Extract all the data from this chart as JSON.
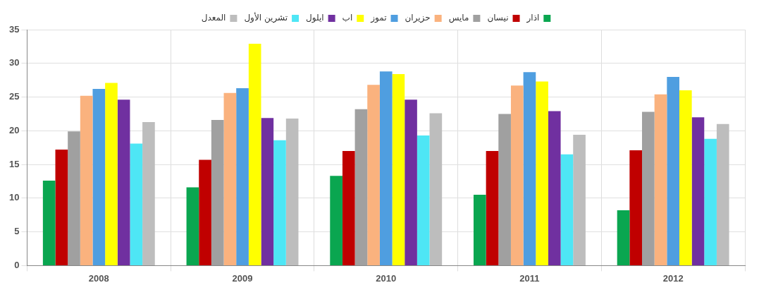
{
  "chart_data": {
    "type": "bar",
    "categories": [
      "2008",
      "2009",
      "2010",
      "2011",
      "2012"
    ],
    "series": [
      {
        "name": "اذار",
        "color": "#0aa650",
        "values": [
          12.6,
          11.6,
          13.3,
          10.5,
          8.2
        ]
      },
      {
        "name": "نيسان",
        "color": "#c00000",
        "values": [
          17.2,
          15.7,
          17.0,
          17.0,
          17.1
        ]
      },
      {
        "name": "مايس",
        "color": "#a0a0a0",
        "values": [
          19.9,
          21.6,
          23.2,
          22.5,
          22.8
        ]
      },
      {
        "name": "حزيران",
        "color": "#fab27e",
        "values": [
          25.2,
          25.6,
          26.8,
          26.7,
          25.4
        ]
      },
      {
        "name": "تموز",
        "color": "#4f9ee0",
        "values": [
          26.2,
          26.3,
          28.8,
          28.7,
          28.0
        ]
      },
      {
        "name": "اب",
        "color": "#ffff00",
        "values": [
          27.1,
          32.9,
          28.4,
          27.3,
          26.0
        ]
      },
      {
        "name": "ايلول",
        "color": "#7030a0",
        "values": [
          24.6,
          21.9,
          24.6,
          22.9,
          22.0
        ]
      },
      {
        "name": "تشرين الأول",
        "color": "#4ee6f5",
        "values": [
          18.1,
          18.6,
          19.3,
          16.5,
          18.8
        ]
      },
      {
        "name": "المعدل",
        "color": "#bdbdbd",
        "values": [
          21.3,
          21.8,
          22.6,
          19.4,
          21.0
        ]
      }
    ],
    "ylim": [
      0,
      35
    ],
    "yticks": [
      0,
      5,
      10,
      15,
      20,
      25,
      30,
      35
    ],
    "grid": true,
    "legend": "top"
  }
}
